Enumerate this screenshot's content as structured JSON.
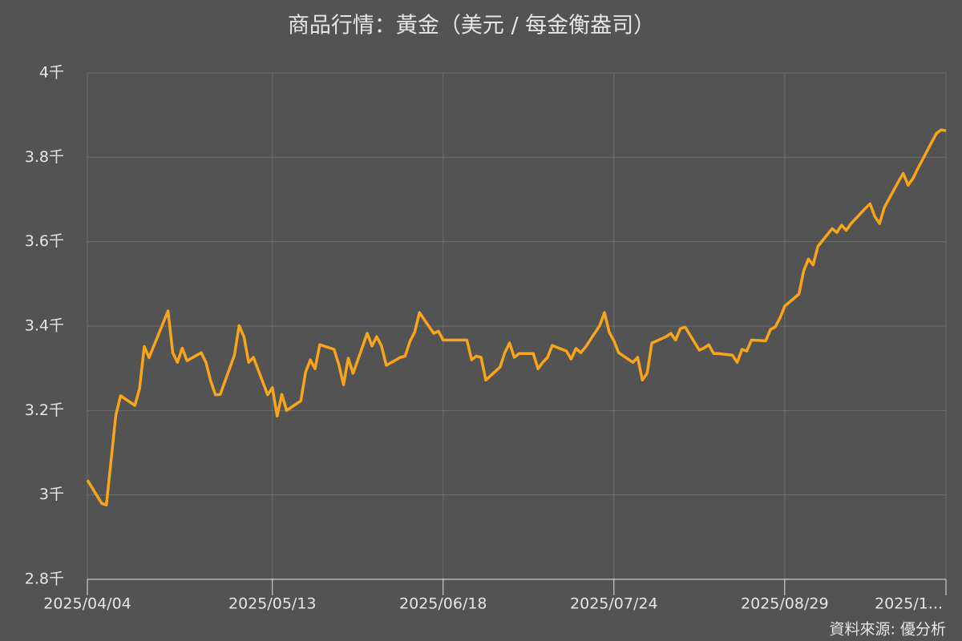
{
  "chart_data": {
    "type": "line",
    "title": "商品行情：黃金（美元 / 每金衡盎司）",
    "source": "資料來源: 優分析",
    "color": "#f9a51b",
    "grid": true,
    "x": [
      "2025/04/04",
      "2025/04/07",
      "2025/04/08",
      "2025/04/10",
      "2025/04/11",
      "2025/04/14",
      "2025/04/15",
      "2025/04/16",
      "2025/04/17",
      "2025/04/21",
      "2025/04/22",
      "2025/04/23",
      "2025/04/24",
      "2025/04/25",
      "2025/04/28",
      "2025/04/29",
      "2025/04/30",
      "2025/05/01",
      "2025/05/02",
      "2025/05/05",
      "2025/05/06",
      "2025/05/07",
      "2025/05/08",
      "2025/05/09",
      "2025/05/12",
      "2025/05/13",
      "2025/05/14",
      "2025/05/15",
      "2025/05/16",
      "2025/05/19",
      "2025/05/20",
      "2025/05/21",
      "2025/05/22",
      "2025/05/23",
      "2025/05/26",
      "2025/05/27",
      "2025/05/28",
      "2025/05/29",
      "2025/05/30",
      "2025/06/02",
      "2025/06/03",
      "2025/06/04",
      "2025/06/05",
      "2025/06/06",
      "2025/06/09",
      "2025/06/10",
      "2025/06/11",
      "2025/06/12",
      "2025/06/13",
      "2025/06/16",
      "2025/06/17",
      "2025/06/18",
      "2025/06/19",
      "2025/06/20",
      "2025/06/23",
      "2025/06/24",
      "2025/06/25",
      "2025/06/26",
      "2025/06/27",
      "2025/06/30",
      "2025/07/01",
      "2025/07/02",
      "2025/07/03",
      "2025/07/04",
      "2025/07/07",
      "2025/07/08",
      "2025/07/09",
      "2025/07/10",
      "2025/07/11",
      "2025/07/14",
      "2025/07/15",
      "2025/07/16",
      "2025/07/17",
      "2025/07/18",
      "2025/07/21",
      "2025/07/22",
      "2025/07/23",
      "2025/07/24",
      "2025/07/25",
      "2025/07/28",
      "2025/07/29",
      "2025/07/30",
      "2025/07/31",
      "2025/08/01",
      "2025/08/04",
      "2025/08/05",
      "2025/08/06",
      "2025/08/07",
      "2025/08/08",
      "2025/08/11",
      "2025/08/12",
      "2025/08/13",
      "2025/08/14",
      "2025/08/15",
      "2025/08/18",
      "2025/08/19",
      "2025/08/20",
      "2025/08/21",
      "2025/08/22",
      "2025/08/25",
      "2025/08/26",
      "2025/08/27",
      "2025/08/28",
      "2025/08/29",
      "2025/09/01",
      "2025/09/02",
      "2025/09/03",
      "2025/09/04",
      "2025/09/05",
      "2025/09/08",
      "2025/09/09",
      "2025/09/10",
      "2025/09/11",
      "2025/09/12",
      "2025/09/15",
      "2025/09/16",
      "2025/09/17",
      "2025/09/18",
      "2025/09/19",
      "2025/09/22",
      "2025/09/23",
      "2025/09/24",
      "2025/09/25",
      "2025/09/26",
      "2025/09/29",
      "2025/09/30",
      "2025/10/01",
      "2025/10/02"
    ],
    "values": [
      3035,
      2980,
      2976,
      3189,
      3235,
      3212,
      3252,
      3352,
      3325,
      3436,
      3337,
      3314,
      3348,
      3318,
      3337,
      3314,
      3270,
      3237,
      3238,
      3331,
      3401,
      3375,
      3314,
      3326,
      3237,
      3254,
      3187,
      3238,
      3200,
      3223,
      3291,
      3320,
      3299,
      3356,
      3345,
      3309,
      3261,
      3324,
      3288,
      3383,
      3353,
      3375,
      3353,
      3307,
      3326,
      3329,
      3364,
      3386,
      3432,
      3383,
      3388,
      3367,
      3367,
      3367,
      3367,
      3320,
      3329,
      3326,
      3272,
      3303,
      3337,
      3360,
      3326,
      3335,
      3335,
      3299,
      3314,
      3326,
      3354,
      3341,
      3322,
      3347,
      3337,
      3350,
      3401,
      3432,
      3386,
      3365,
      3337,
      3314,
      3326,
      3272,
      3288,
      3360,
      3375,
      3383,
      3367,
      3394,
      3398,
      3343,
      3348,
      3356,
      3335,
      3335,
      3331,
      3314,
      3345,
      3341,
      3367,
      3365,
      3392,
      3398,
      3419,
      3447,
      3476,
      3531,
      3559,
      3545,
      3589,
      3631,
      3622,
      3639,
      3627,
      3643,
      3679,
      3690,
      3660,
      3643,
      3681,
      3743,
      3762,
      3734,
      3749,
      3772,
      3836,
      3857,
      3865,
      3863
    ],
    "xlim": [
      "2025/04/04",
      "2025/10/02"
    ],
    "xticks": [
      "2025/04/04",
      "2025/05/13",
      "2025/06/18",
      "2025/07/24",
      "2025/08/29",
      {
        "value": "2025/10/02",
        "label": "2025/1..."
      }
    ],
    "ylim": [
      2800,
      4000
    ],
    "yticks": [
      {
        "value": 2800,
        "label": "2.8千"
      },
      {
        "value": 3000,
        "label": "3千"
      },
      {
        "value": 3200,
        "label": "3.2千"
      },
      {
        "value": 3400,
        "label": "3.4千"
      },
      {
        "value": 3600,
        "label": "3.6千"
      },
      {
        "value": 3800,
        "label": "3.8千"
      },
      {
        "value": 4000,
        "label": "4千"
      }
    ]
  }
}
